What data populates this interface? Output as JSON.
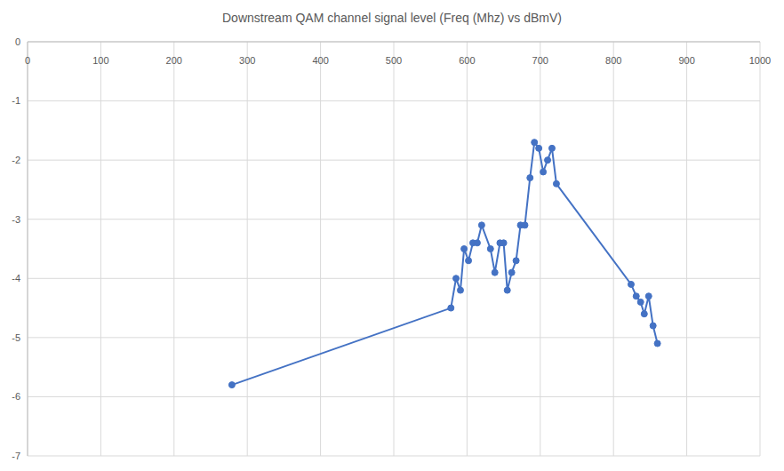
{
  "chart_data": {
    "type": "line",
    "title": "Downstream QAM channel signal level (Freq (Mhz) vs dBmV)",
    "x": [
      279,
      578,
      585,
      591,
      596,
      602,
      608,
      614,
      620,
      632,
      638,
      645,
      650,
      655,
      661,
      667,
      673,
      679,
      686,
      692,
      698,
      704,
      710,
      716,
      722,
      824,
      831,
      837,
      842,
      848,
      854,
      860
    ],
    "values": [
      -5.8,
      -4.5,
      -4.0,
      -4.2,
      -3.5,
      -3.7,
      -3.4,
      -3.4,
      -3.1,
      -3.5,
      -3.9,
      -3.4,
      -3.4,
      -4.2,
      -3.9,
      -3.7,
      -3.1,
      -3.1,
      -2.3,
      -1.7,
      -1.8,
      -2.2,
      -2.0,
      -1.8,
      -2.4,
      -4.1,
      -4.3,
      -4.4,
      -4.6,
      -4.3,
      -4.8,
      -5.1
    ],
    "color": "#4472c4",
    "marker": "circle",
    "xlim": [
      0,
      1000
    ],
    "xticks": [
      0,
      100,
      200,
      300,
      400,
      500,
      600,
      700,
      800,
      900,
      1000
    ],
    "ylim": [
      -7,
      0
    ],
    "yticks": [
      -7,
      -6,
      -5,
      -4,
      -3,
      -2,
      -1,
      0
    ],
    "grid": true
  }
}
